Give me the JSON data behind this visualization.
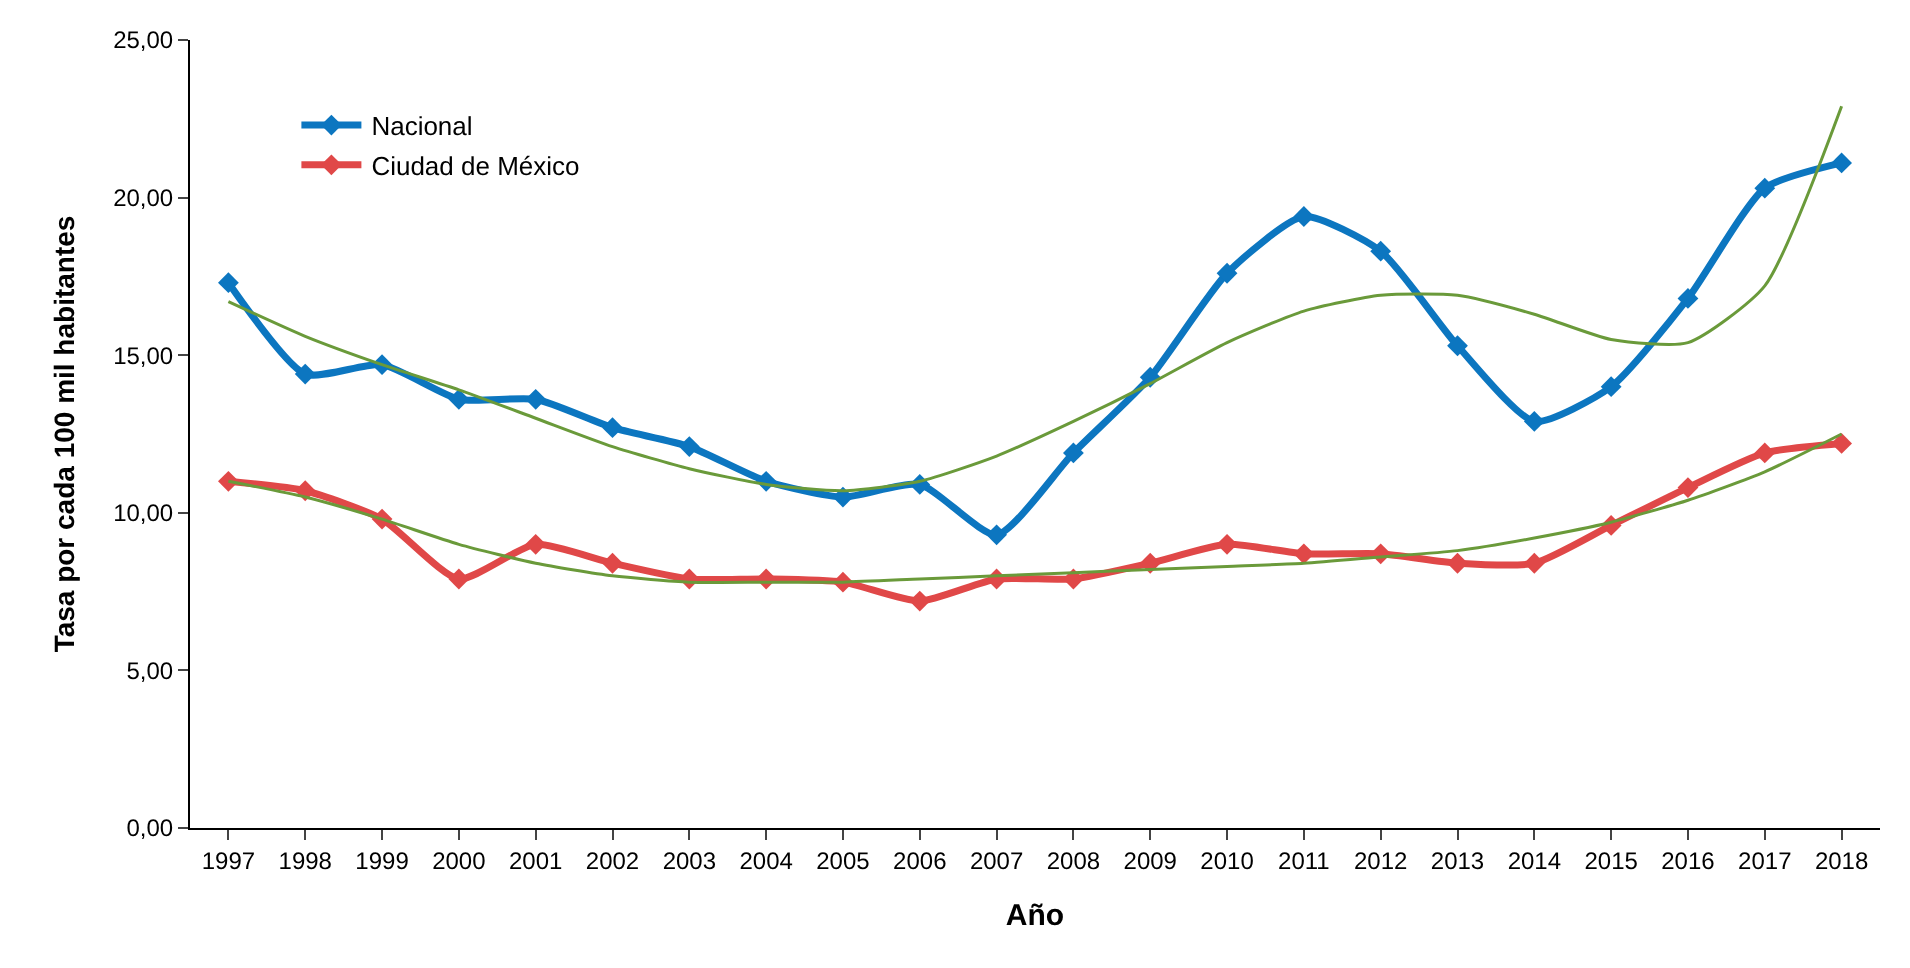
{
  "chart_data": {
    "type": "line",
    "xlabel": "Año",
    "ylabel": "Tasa por cada 100 mil habitantes",
    "categories": [
      "1997",
      "1998",
      "1999",
      "2000",
      "2001",
      "2002",
      "2003",
      "2004",
      "2005",
      "2006",
      "2007",
      "2008",
      "2009",
      "2010",
      "2011",
      "2012",
      "2013",
      "2014",
      "2015",
      "2016",
      "2017",
      "2018"
    ],
    "series": [
      {
        "name": "Nacional",
        "color": "#0c76c0",
        "marker": "diamond",
        "values": [
          17.3,
          14.4,
          14.7,
          13.6,
          13.6,
          12.7,
          12.1,
          11.0,
          10.5,
          10.9,
          9.3,
          11.9,
          14.3,
          17.6,
          19.4,
          18.3,
          15.3,
          12.9,
          14.0,
          16.8,
          20.3,
          21.1
        ]
      },
      {
        "name": "Ciudad de México",
        "color": "#e04848",
        "marker": "diamond",
        "values": [
          11.0,
          10.7,
          9.8,
          7.9,
          9.0,
          8.4,
          7.9,
          7.9,
          7.8,
          7.2,
          7.9,
          7.9,
          8.4,
          9.0,
          8.7,
          8.7,
          8.4,
          8.4,
          9.6,
          10.8,
          11.9,
          12.2
        ]
      },
      {
        "color": "#6a9a3a",
        "marker": "none",
        "values": [
          16.7,
          15.6,
          14.7,
          13.9,
          13.0,
          12.1,
          11.4,
          10.9,
          10.7,
          11.0,
          11.8,
          12.9,
          14.1,
          15.4,
          16.4,
          16.9,
          16.9,
          16.3,
          15.5,
          15.4,
          17.2,
          22.9
        ]
      },
      {
        "color": "#6a9a3a",
        "marker": "none",
        "values": [
          11.0,
          10.5,
          9.8,
          9.0,
          8.4,
          8.0,
          7.8,
          7.8,
          7.8,
          7.9,
          8.0,
          8.1,
          8.2,
          8.3,
          8.4,
          8.6,
          8.8,
          9.2,
          9.7,
          10.4,
          11.3,
          12.5
        ]
      }
    ],
    "ylim": [
      0,
      25
    ],
    "yticks": [
      {
        "value": 0,
        "label": "0,00"
      },
      {
        "value": 5,
        "label": "5,00"
      },
      {
        "value": 10,
        "label": "10,00"
      },
      {
        "value": 15,
        "label": "15,00"
      },
      {
        "value": 20,
        "label": "20,00"
      },
      {
        "value": 25,
        "label": "25,00"
      }
    ],
    "legend": "top left"
  }
}
